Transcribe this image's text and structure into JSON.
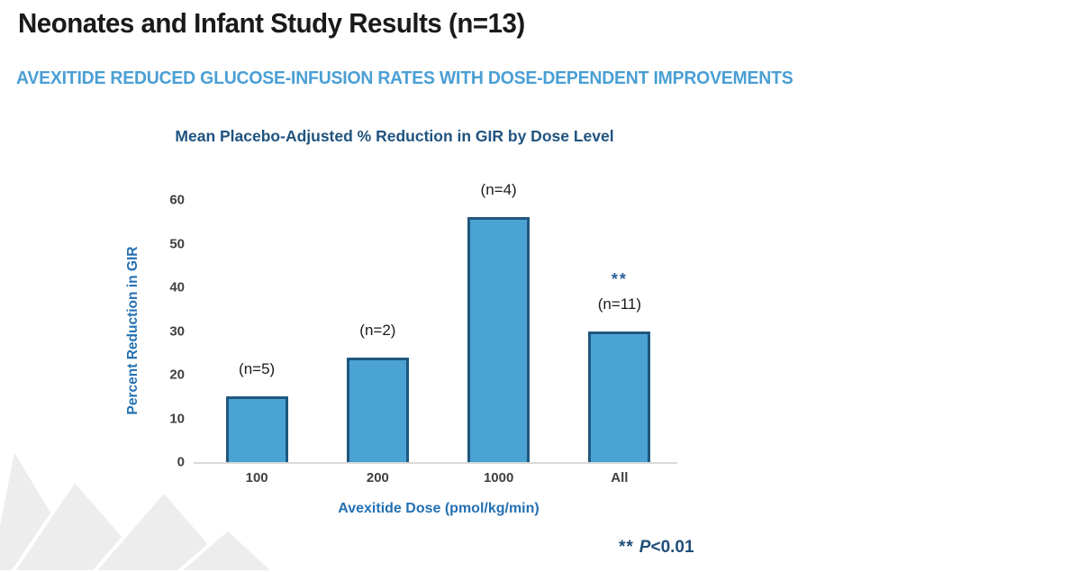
{
  "slide": {
    "title": "Neonates and Infant Study Results (n=13)",
    "subtitle": "AVEXITIDE REDUCED GLUCOSE-INFUSION RATES WITH DOSE-DEPENDENT IMPROVEMENTS"
  },
  "footnote": {
    "marker": "**",
    "p": "P",
    "rest": "<0.01"
  },
  "colors": {
    "subtitle_blue": "#4A9FD4",
    "chart_title_blue": "#1F5380",
    "axis_title_blue": "#2470B3",
    "bar_fill": "#4BA3D3",
    "bar_border": "#1F577F",
    "tick_text": "#404040",
    "annotation_text": "#1A1A1A",
    "significance_blue": "#2A6099",
    "footnote_blue": "#1F4E79",
    "axis_line_gray": "#D9D9D9",
    "watermark_gray": "#EDEDED"
  },
  "chart_data": {
    "type": "bar",
    "title": "Mean Placebo-Adjusted % Reduction in GIR by Dose Level",
    "xlabel": "Avexitide Dose (pmol/kg/min)",
    "ylabel": "Percent Reduction in GIR",
    "categories": [
      "100",
      "200",
      "1000",
      "All"
    ],
    "values": [
      15,
      24,
      56,
      30
    ],
    "bar_annotations": [
      "(n=5)",
      "(n=2)",
      "(n=4)",
      "(n=11)"
    ],
    "significance": [
      "",
      "",
      "",
      "**"
    ],
    "ylim": [
      0,
      60
    ],
    "ytick_step": 10,
    "grid": false,
    "legend": false
  }
}
